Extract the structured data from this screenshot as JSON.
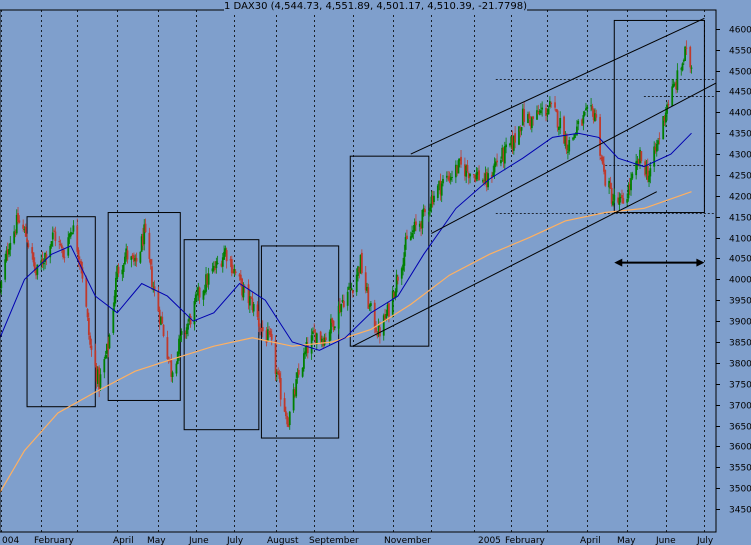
{
  "chart_data": {
    "type": "candlestick",
    "title": "1 DAX30 (4,544.73, 4,551.89, 4,501.17, 4,510.39, -21.7798)",
    "y_axis": {
      "side": "right",
      "ylim": [
        3395,
        4645
      ],
      "ticks": [
        3450,
        3500,
        3550,
        3600,
        3650,
        3700,
        3750,
        3800,
        3850,
        3900,
        3950,
        4000,
        4050,
        4100,
        4150,
        4200,
        4250,
        4300,
        4350,
        4400,
        4450,
        4500,
        4550,
        4600
      ]
    },
    "x_axis": {
      "labels": [
        "004",
        "February",
        "April",
        "May",
        "June",
        "July",
        "August",
        "September",
        "November",
        "2005",
        "February",
        "April",
        "May",
        "June",
        "July"
      ],
      "range_start": "2004-01-01",
      "range_end": "2005-07-10"
    },
    "colors": {
      "background": "#7f9fcc",
      "up_candle": "#008000",
      "down_candle": "#c0392b",
      "ma_short": "#0000b0",
      "ma_long": "#ffb060",
      "annotation": "#000000"
    },
    "price_anchors": [
      [
        "2004-01-01",
        3970
      ],
      [
        "2004-01-08",
        4090
      ],
      [
        "2004-01-15",
        4140
      ],
      [
        "2004-01-22",
        4100
      ],
      [
        "2004-01-29",
        4010
      ],
      [
        "2004-02-05",
        4060
      ],
      [
        "2004-02-12",
        4110
      ],
      [
        "2004-02-19",
        4060
      ],
      [
        "2004-02-26",
        4130
      ],
      [
        "2004-03-04",
        4040
      ],
      [
        "2004-03-11",
        3840
      ],
      [
        "2004-03-18",
        3750
      ],
      [
        "2004-03-25",
        3840
      ],
      [
        "2004-04-01",
        4020
      ],
      [
        "2004-04-08",
        4060
      ],
      [
        "2004-04-15",
        4030
      ],
      [
        "2004-04-22",
        4110
      ],
      [
        "2004-04-29",
        3980
      ],
      [
        "2004-05-06",
        3890
      ],
      [
        "2004-05-13",
        3780
      ],
      [
        "2004-05-20",
        3850
      ],
      [
        "2004-05-27",
        3900
      ],
      [
        "2004-06-03",
        3960
      ],
      [
        "2004-06-10",
        4000
      ],
      [
        "2004-06-17",
        4030
      ],
      [
        "2004-06-24",
        4070
      ],
      [
        "2004-07-01",
        4020
      ],
      [
        "2004-07-08",
        3970
      ],
      [
        "2004-07-15",
        3940
      ],
      [
        "2004-07-22",
        3880
      ],
      [
        "2004-07-29",
        3850
      ],
      [
        "2004-08-05",
        3740
      ],
      [
        "2004-08-12",
        3660
      ],
      [
        "2004-08-19",
        3760
      ],
      [
        "2004-08-26",
        3830
      ],
      [
        "2004-09-02",
        3870
      ],
      [
        "2004-09-09",
        3860
      ],
      [
        "2004-09-16",
        3900
      ],
      [
        "2004-09-23",
        3950
      ],
      [
        "2004-09-30",
        3980
      ],
      [
        "2004-10-07",
        4040
      ],
      [
        "2004-10-14",
        3930
      ],
      [
        "2004-10-21",
        3870
      ],
      [
        "2004-10-28",
        3920
      ],
      [
        "2004-11-04",
        4000
      ],
      [
        "2004-11-11",
        4080
      ],
      [
        "2004-11-18",
        4120
      ],
      [
        "2004-11-25",
        4150
      ],
      [
        "2004-12-02",
        4200
      ],
      [
        "2004-12-09",
        4230
      ],
      [
        "2004-12-16",
        4250
      ],
      [
        "2004-12-23",
        4270
      ],
      [
        "2004-12-30",
        4260
      ],
      [
        "2005-01-06",
        4250
      ],
      [
        "2005-01-13",
        4230
      ],
      [
        "2005-01-20",
        4280
      ],
      [
        "2005-01-27",
        4300
      ],
      [
        "2005-02-03",
        4330
      ],
      [
        "2005-02-10",
        4390
      ],
      [
        "2005-02-17",
        4380
      ],
      [
        "2005-02-24",
        4400
      ],
      [
        "2005-03-03",
        4410
      ],
      [
        "2005-03-10",
        4380
      ],
      [
        "2005-03-17",
        4320
      ],
      [
        "2005-03-24",
        4360
      ],
      [
        "2005-03-31",
        4390
      ],
      [
        "2005-04-07",
        4400
      ],
      [
        "2005-04-14",
        4250
      ],
      [
        "2005-04-21",
        4190
      ],
      [
        "2005-04-28",
        4180
      ],
      [
        "2005-05-05",
        4230
      ],
      [
        "2005-05-12",
        4290
      ],
      [
        "2005-05-19",
        4250
      ],
      [
        "2005-05-26",
        4330
      ],
      [
        "2005-06-02",
        4420
      ],
      [
        "2005-06-09",
        4470
      ],
      [
        "2005-06-16",
        4540
      ],
      [
        "2005-06-21",
        4510
      ]
    ],
    "moving_averages": {
      "short": [
        [
          "2004-01-01",
          3860
        ],
        [
          "2004-01-20",
          4000
        ],
        [
          "2004-02-10",
          4060
        ],
        [
          "2004-02-25",
          4080
        ],
        [
          "2004-03-15",
          3960
        ],
        [
          "2004-04-01",
          3920
        ],
        [
          "2004-04-20",
          3990
        ],
        [
          "2004-05-10",
          3960
        ],
        [
          "2004-05-30",
          3900
        ],
        [
          "2004-06-15",
          3920
        ],
        [
          "2004-07-05",
          3990
        ],
        [
          "2004-07-25",
          3950
        ],
        [
          "2004-08-15",
          3850
        ],
        [
          "2004-09-05",
          3830
        ],
        [
          "2004-09-25",
          3860
        ],
        [
          "2004-10-15",
          3920
        ],
        [
          "2004-11-05",
          3960
        ],
        [
          "2004-11-25",
          4060
        ],
        [
          "2004-12-20",
          4170
        ],
        [
          "2005-01-15",
          4240
        ],
        [
          "2005-02-10",
          4290
        ],
        [
          "2005-03-05",
          4340
        ],
        [
          "2005-03-25",
          4350
        ],
        [
          "2005-04-10",
          4340
        ],
        [
          "2005-04-25",
          4290
        ],
        [
          "2005-05-15",
          4270
        ],
        [
          "2005-06-05",
          4300
        ],
        [
          "2005-06-21",
          4350
        ]
      ],
      "long": [
        [
          "2004-01-01",
          3490
        ],
        [
          "2004-01-20",
          3590
        ],
        [
          "2004-02-15",
          3680
        ],
        [
          "2004-03-15",
          3730
        ],
        [
          "2004-04-15",
          3780
        ],
        [
          "2004-05-15",
          3810
        ],
        [
          "2004-06-15",
          3840
        ],
        [
          "2004-07-15",
          3860
        ],
        [
          "2004-08-15",
          3840
        ],
        [
          "2004-09-15",
          3850
        ],
        [
          "2004-10-15",
          3880
        ],
        [
          "2004-11-15",
          3940
        ],
        [
          "2004-12-15",
          4010
        ],
        [
          "2005-01-15",
          4060
        ],
        [
          "2005-02-15",
          4100
        ],
        [
          "2005-03-15",
          4140
        ],
        [
          "2005-04-15",
          4160
        ],
        [
          "2005-05-15",
          4170
        ],
        [
          "2005-06-21",
          4210
        ]
      ]
    },
    "annotations": {
      "monthly_gridline_dates": [
        "2004-01-02",
        "2004-02-02",
        "2004-03-01",
        "2004-04-01",
        "2004-05-03",
        "2004-06-01",
        "2004-07-01",
        "2004-08-02",
        "2004-09-01",
        "2004-10-01",
        "2004-11-01",
        "2004-12-01",
        "2005-01-03",
        "2005-02-01",
        "2005-03-01",
        "2005-04-01",
        "2005-05-02",
        "2005-06-01",
        "2005-07-01"
      ],
      "boxes": [
        {
          "from": "2004-01-22",
          "to": "2004-03-15",
          "high": 4150,
          "low": 3695
        },
        {
          "from": "2004-03-25",
          "to": "2004-05-20",
          "high": 4160,
          "low": 3710
        },
        {
          "from": "2004-05-23",
          "to": "2004-07-20",
          "high": 4095,
          "low": 3640
        },
        {
          "from": "2004-07-22",
          "to": "2004-09-20",
          "high": 4080,
          "low": 3620
        },
        {
          "from": "2004-09-29",
          "to": "2004-11-29",
          "high": 4295,
          "low": 3840
        },
        {
          "from": "2005-04-22",
          "to": "2005-07-01",
          "high": 4620,
          "low": 4160
        }
      ],
      "trend_lines": [
        {
          "from": [
            "2004-11-15",
            4300
          ],
          "to": [
            "2005-07-01",
            4625
          ]
        },
        {
          "from": [
            "2004-12-01",
            4110
          ],
          "to": [
            "2005-07-10",
            4470
          ]
        },
        {
          "from": [
            "2004-10-01",
            3840
          ],
          "to": [
            "2005-05-25",
            4210
          ]
        }
      ],
      "horizontal_dotted_levels": [
        {
          "value": 4480,
          "from": "2005-01-20",
          "to": "2005-07-10"
        },
        {
          "value": 4440,
          "from": "2005-05-15",
          "to": "2005-07-10"
        },
        {
          "value": 4275,
          "from": "2005-04-15",
          "to": "2005-07-01"
        },
        {
          "value": 4160,
          "from": "2005-01-20",
          "to": "2005-07-10"
        }
      ],
      "double_arrow": {
        "from": "2005-04-22",
        "to": "2005-07-01",
        "value": 4040
      }
    }
  }
}
